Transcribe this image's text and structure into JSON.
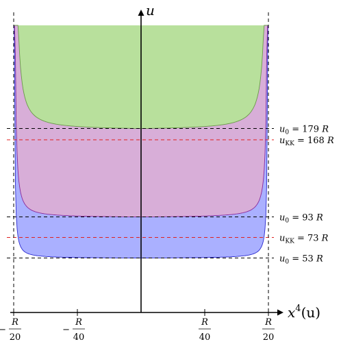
{
  "chart_data": {
    "type": "area",
    "xlabel": "x",
    "xlabel_sup": "4",
    "xlabel_arg": "(u)",
    "ylabel": "u",
    "xlim": [
      -0.05,
      0.05
    ],
    "x_unit": "R",
    "x_ticks": [
      {
        "value": -0.05,
        "sign": "−",
        "num": "R",
        "den": "20"
      },
      {
        "value": -0.025,
        "sign": "−",
        "num": "R",
        "den": "40"
      },
      {
        "value": 0.025,
        "sign": "",
        "num": "R",
        "den": "40"
      },
      {
        "value": 0.05,
        "sign": "",
        "num": "R",
        "den": "20"
      }
    ],
    "series": [
      {
        "u0": 53,
        "color": "#aab0ff",
        "stroke": "#2a2ad0"
      },
      {
        "u0": 93,
        "color": "#d8aed8",
        "stroke": "#8a2a9a"
      },
      {
        "u0": 179,
        "color": "#b8e09c",
        "stroke": "#6a9a4a"
      }
    ],
    "reference_lines": [
      {
        "kind": "u0",
        "value": 179,
        "color": "#000000",
        "text": "u",
        "sub": "0",
        "rhs": "= 179",
        "unit": "R"
      },
      {
        "kind": "ukk",
        "value": 168,
        "color": "#e02020",
        "text": "u",
        "sub": "KK",
        "rhs": "= 168",
        "unit": "R"
      },
      {
        "kind": "u0",
        "value": 93,
        "color": "#000000",
        "text": "u",
        "sub": "0",
        "rhs": "= 93",
        "unit": "R"
      },
      {
        "kind": "ukk",
        "value": 73,
        "color": "#e02020",
        "text": "u",
        "sub": "KK",
        "rhs": "= 73",
        "unit": "R"
      },
      {
        "kind": "u0",
        "value": 53,
        "color": "#000000",
        "text": "u",
        "sub": "0",
        "rhs": "= 53",
        "unit": "R"
      }
    ],
    "asymptotes_x": [
      -0.05,
      0.05
    ],
    "grid": false,
    "legend": "none"
  }
}
